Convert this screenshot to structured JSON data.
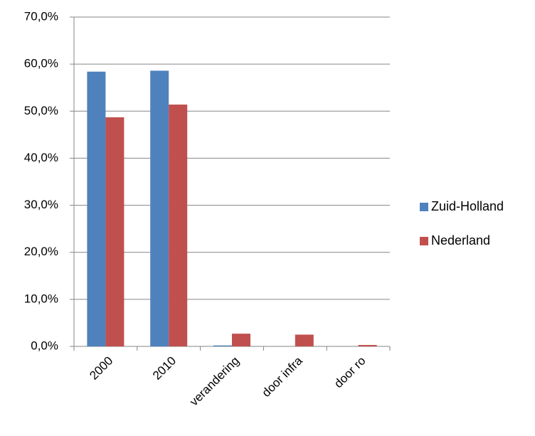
{
  "chart_data": {
    "type": "bar",
    "categories": [
      "2000",
      "2010",
      "verandering",
      "door infra",
      "door ro"
    ],
    "series": [
      {
        "name": "Zuid-Holland",
        "color": "#4f81bd",
        "values": [
          58.4,
          58.6,
          0.2,
          0,
          0
        ]
      },
      {
        "name": "Nederland",
        "color": "#c0504d",
        "values": [
          48.7,
          51.4,
          2.7,
          2.5,
          0.3
        ]
      }
    ],
    "ylim": [
      0,
      70
    ],
    "yticks": [
      {
        "value": 0,
        "label": "0,0%"
      },
      {
        "value": 10,
        "label": "10,0%"
      },
      {
        "value": 20,
        "label": "20,0%"
      },
      {
        "value": 30,
        "label": "30,0%"
      },
      {
        "value": 40,
        "label": "40,0%"
      },
      {
        "value": 50,
        "label": "50,0%"
      },
      {
        "value": 60,
        "label": "60,0%"
      },
      {
        "value": 70,
        "label": "70,0%"
      }
    ],
    "grid": true,
    "legend": "right"
  }
}
